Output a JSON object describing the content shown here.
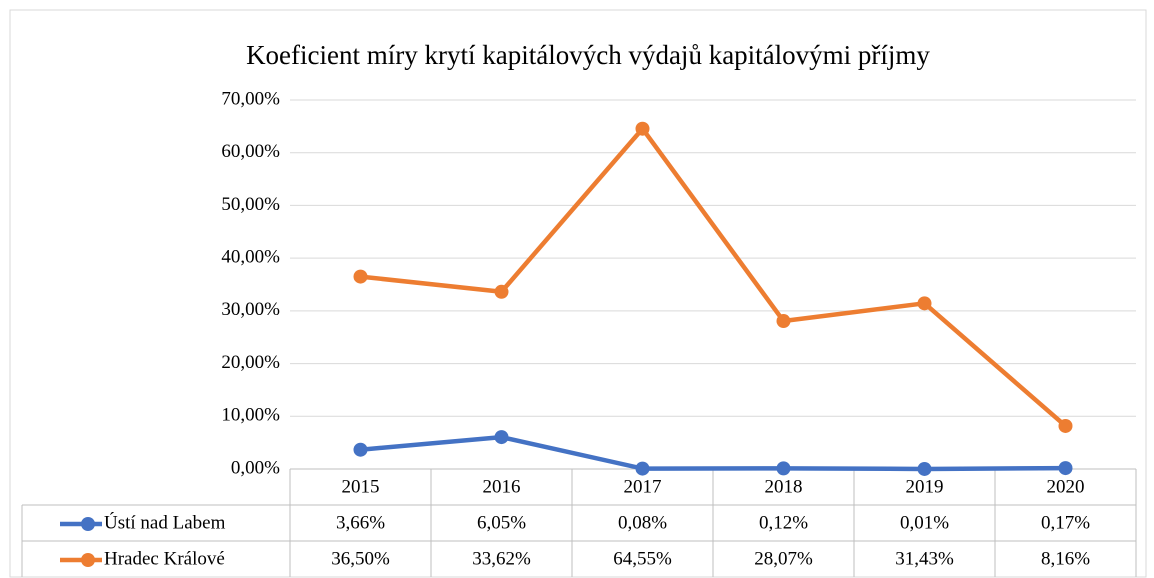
{
  "chart_data": {
    "type": "line",
    "title": "Koeficient míry krytí kapitálových výdajů kapitálovými příjmy",
    "categories": [
      "2015",
      "2016",
      "2017",
      "2018",
      "2019",
      "2020"
    ],
    "series": [
      {
        "name": "Ústí nad Labem",
        "color": "#4472c4",
        "values": [
          3.66,
          6.05,
          0.08,
          0.12,
          0.01,
          0.17
        ],
        "value_labels": [
          "3,66%",
          "6,05%",
          "0,08%",
          "0,12%",
          "0,01%",
          "0,17%"
        ]
      },
      {
        "name": "Hradec Králové",
        "color": "#ed7d31",
        "values": [
          36.5,
          33.62,
          64.55,
          28.07,
          31.43,
          8.16
        ],
        "value_labels": [
          "36,50%",
          "33,62%",
          "64,55%",
          "28,07%",
          "31,43%",
          "8,16%"
        ]
      }
    ],
    "ylim": [
      0,
      70
    ],
    "yticks": [
      {
        "value": 0,
        "label": "0,00%"
      },
      {
        "value": 10,
        "label": "10,00%"
      },
      {
        "value": 20,
        "label": "20,00%"
      },
      {
        "value": 30,
        "label": "30,00%"
      },
      {
        "value": 40,
        "label": "40,00%"
      },
      {
        "value": 50,
        "label": "50,00%"
      },
      {
        "value": 60,
        "label": "60,00%"
      },
      {
        "value": 70,
        "label": "70,00%"
      }
    ],
    "grid": true
  }
}
